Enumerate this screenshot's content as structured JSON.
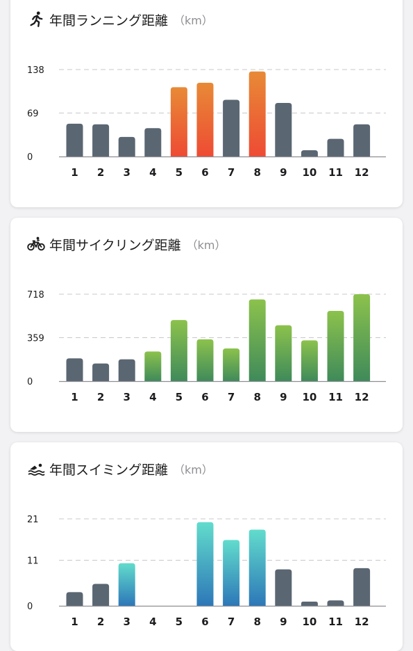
{
  "colors": {
    "neutral": "#5a6672",
    "running_top": "#e88a36",
    "running_bottom": "#ee4b34",
    "cycling_top": "#8cc24c",
    "cycling_bottom": "#3f8a5a",
    "swimming_top": "#62dccc",
    "swimming_bottom": "#2d77b8",
    "grid": "#c8c8cc",
    "axis": "#8e8e93"
  },
  "cards": {
    "running": {
      "title": "年間ランニング距離",
      "unit": "（km）",
      "icon": "running-person-icon"
    },
    "cycling": {
      "title": "年間サイクリング距離",
      "unit": "（km）",
      "icon": "bicycle-icon"
    },
    "swimming": {
      "title": "年間スイミング距離",
      "unit": "（km）",
      "icon": "swimmer-icon"
    }
  },
  "chart_data": [
    {
      "id": "running",
      "type": "bar",
      "categories": [
        "1",
        "2",
        "3",
        "4",
        "5",
        "6",
        "7",
        "8",
        "9",
        "10",
        "11",
        "12"
      ],
      "values": [
        52,
        51,
        31,
        45,
        110,
        117,
        90,
        135,
        85,
        10,
        28,
        51
      ],
      "highlighted": [
        false,
        false,
        false,
        false,
        true,
        true,
        false,
        true,
        false,
        false,
        false,
        false
      ],
      "yticks": [
        "0",
        "69",
        "138"
      ],
      "ylim": [
        0,
        138
      ],
      "grid": true
    },
    {
      "id": "cycling",
      "type": "bar",
      "categories": [
        "1",
        "2",
        "3",
        "4",
        "5",
        "6",
        "7",
        "8",
        "9",
        "10",
        "11",
        "12"
      ],
      "values": [
        188,
        146,
        180,
        245,
        505,
        345,
        270,
        675,
        462,
        337,
        580,
        718
      ],
      "highlighted": [
        false,
        false,
        false,
        true,
        true,
        true,
        true,
        true,
        true,
        true,
        true,
        true
      ],
      "yticks": [
        "0",
        "359",
        "718"
      ],
      "ylim": [
        0,
        718
      ],
      "grid": true
    },
    {
      "id": "swimming",
      "type": "bar",
      "categories": [
        "1",
        "2",
        "3",
        "4",
        "5",
        "6",
        "7",
        "8",
        "9",
        "10",
        "11",
        "12"
      ],
      "values": [
        3.3,
        5.3,
        10.3,
        0,
        0,
        20.2,
        15.9,
        18.4,
        8.8,
        1.0,
        1.3,
        9.1
      ],
      "highlighted": [
        false,
        false,
        true,
        false,
        false,
        true,
        true,
        true,
        false,
        false,
        false,
        false
      ],
      "yticks": [
        "0",
        "11",
        "21"
      ],
      "ylim": [
        0,
        21
      ],
      "grid": true
    }
  ]
}
